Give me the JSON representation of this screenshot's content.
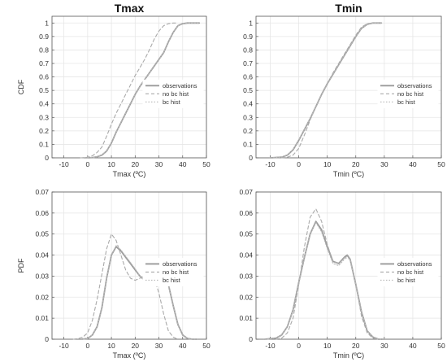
{
  "chart_data": [
    {
      "type": "line",
      "title": "Tmax",
      "xlabel": "Tmax (ºC)",
      "ylabel": "CDF",
      "xlim": [
        -15,
        50
      ],
      "ylim": [
        0,
        1.05
      ],
      "xticks": [
        "-10",
        "0",
        "10",
        "20",
        "30",
        "40",
        "50"
      ],
      "yticks": [
        "0",
        "0.1",
        "0.2",
        "0.3",
        "0.4",
        "0.5",
        "0.6",
        "0.7",
        "0.8",
        "0.9",
        "1"
      ],
      "grid": true,
      "legend_position": "right",
      "series": [
        {
          "name": "observations",
          "style": "solid",
          "color": "#9a9a9a",
          "x": [
            0,
            2,
            4,
            6,
            8,
            10,
            12,
            14,
            16,
            18,
            20,
            22,
            24,
            26,
            28,
            30,
            32,
            34,
            36,
            38,
            40,
            42,
            44,
            47
          ],
          "y": [
            0,
            0.002,
            0.008,
            0.02,
            0.05,
            0.11,
            0.19,
            0.26,
            0.33,
            0.4,
            0.47,
            0.53,
            0.58,
            0.63,
            0.68,
            0.73,
            0.78,
            0.86,
            0.93,
            0.98,
            0.995,
            1.0,
            1.0,
            1.0
          ]
        },
        {
          "name": "no bc hist",
          "style": "dashed",
          "color": "#aaaaaa",
          "x": [
            -3,
            0,
            2,
            4,
            6,
            8,
            10,
            12,
            14,
            16,
            18,
            20,
            22,
            24,
            26,
            28,
            30,
            32,
            34,
            36,
            38
          ],
          "y": [
            0,
            0.004,
            0.015,
            0.04,
            0.08,
            0.16,
            0.25,
            0.33,
            0.4,
            0.47,
            0.54,
            0.61,
            0.67,
            0.73,
            0.8,
            0.88,
            0.94,
            0.98,
            0.995,
            1.0,
            1.0
          ]
        },
        {
          "name": "bc hist",
          "style": "dotted",
          "color": "#b8b8b8",
          "x": [
            0,
            2,
            4,
            6,
            8,
            10,
            12,
            14,
            16,
            18,
            20,
            22,
            24,
            26,
            28,
            30,
            32,
            34,
            36,
            38,
            40,
            42,
            44,
            47
          ],
          "y": [
            0,
            0.002,
            0.008,
            0.021,
            0.052,
            0.112,
            0.19,
            0.26,
            0.33,
            0.4,
            0.47,
            0.53,
            0.58,
            0.63,
            0.68,
            0.73,
            0.78,
            0.86,
            0.93,
            0.98,
            0.995,
            1.0,
            1.0,
            1.0
          ]
        }
      ]
    },
    {
      "type": "line",
      "title": "Tmin",
      "xlabel": "Tmin (ºC)",
      "ylabel": "",
      "xlim": [
        -15,
        50
      ],
      "ylim": [
        0,
        1.05
      ],
      "xticks": [
        "-10",
        "0",
        "10",
        "20",
        "30",
        "40",
        "50"
      ],
      "yticks": [
        "0",
        "0.1",
        "0.2",
        "0.3",
        "0.4",
        "0.5",
        "0.6",
        "0.7",
        "0.8",
        "0.9",
        "1"
      ],
      "grid": true,
      "legend_position": "right",
      "series": [
        {
          "name": "observations",
          "style": "solid",
          "color": "#9a9a9a",
          "x": [
            -10,
            -6,
            -4,
            -2,
            0,
            2,
            4,
            6,
            8,
            10,
            12,
            14,
            16,
            18,
            20,
            22,
            24,
            26,
            28,
            29
          ],
          "y": [
            0,
            0.005,
            0.02,
            0.06,
            0.13,
            0.21,
            0.29,
            0.38,
            0.47,
            0.55,
            0.62,
            0.69,
            0.76,
            0.83,
            0.9,
            0.96,
            0.99,
            1.0,
            1.0,
            1.0
          ]
        },
        {
          "name": "no bc hist",
          "style": "dashed",
          "color": "#aaaaaa",
          "x": [
            -6,
            -4,
            -2,
            0,
            2,
            4,
            6,
            8,
            10,
            12,
            14,
            16,
            18,
            20,
            22,
            24,
            26,
            28
          ],
          "y": [
            0,
            0.005,
            0.02,
            0.07,
            0.17,
            0.28,
            0.38,
            0.47,
            0.55,
            0.63,
            0.7,
            0.77,
            0.84,
            0.91,
            0.97,
            0.995,
            1.0,
            1.0
          ]
        },
        {
          "name": "bc hist",
          "style": "dotted",
          "color": "#b8b8b8",
          "x": [
            -10,
            -6,
            -4,
            -2,
            0,
            2,
            4,
            6,
            8,
            10,
            12,
            14,
            16,
            18,
            20,
            22,
            24,
            26,
            28,
            29
          ],
          "y": [
            0,
            0.006,
            0.021,
            0.062,
            0.133,
            0.213,
            0.292,
            0.38,
            0.47,
            0.55,
            0.62,
            0.69,
            0.76,
            0.83,
            0.9,
            0.96,
            0.99,
            1.0,
            1.0,
            1.0
          ]
        }
      ]
    },
    {
      "type": "line",
      "title": "",
      "xlabel": "Tmax (ºC)",
      "ylabel": "PDF",
      "xlim": [
        -15,
        50
      ],
      "ylim": [
        0,
        0.07
      ],
      "xticks": [
        "-10",
        "0",
        "10",
        "20",
        "30",
        "40",
        "50"
      ],
      "yticks": [
        "0",
        "0.01",
        "0.02",
        "0.03",
        "0.04",
        "0.05",
        "0.06",
        "0.07"
      ],
      "grid": true,
      "legend_position": "right",
      "series": [
        {
          "name": "observations",
          "style": "solid",
          "color": "#9a9a9a",
          "x": [
            -3,
            0,
            2,
            4,
            6,
            8,
            10,
            12,
            14,
            16,
            18,
            20,
            22,
            24,
            26,
            28,
            30,
            32,
            34,
            36,
            38,
            40,
            42,
            44,
            46
          ],
          "y": [
            0,
            0.0003,
            0.002,
            0.006,
            0.015,
            0.029,
            0.04,
            0.044,
            0.042,
            0.039,
            0.036,
            0.033,
            0.03,
            0.028,
            0.027,
            0.027,
            0.028,
            0.029,
            0.026,
            0.016,
            0.007,
            0.002,
            0.0004,
            0,
            0
          ]
        },
        {
          "name": "no bc hist",
          "style": "dashed",
          "color": "#aaaaaa",
          "x": [
            -6,
            -4,
            -2,
            0,
            2,
            4,
            6,
            8,
            10,
            12,
            14,
            16,
            18,
            20,
            22,
            24,
            26,
            28,
            30,
            32,
            34,
            36,
            38
          ],
          "y": [
            0,
            0.0003,
            0.001,
            0.003,
            0.009,
            0.019,
            0.031,
            0.043,
            0.05,
            0.047,
            0.04,
            0.033,
            0.029,
            0.028,
            0.029,
            0.03,
            0.031,
            0.029,
            0.022,
            0.012,
            0.004,
            0.001,
            0
          ]
        },
        {
          "name": "bc hist",
          "style": "dotted",
          "color": "#b8b8b8",
          "x": [
            -3,
            0,
            2,
            4,
            6,
            8,
            10,
            12,
            14,
            16,
            18,
            20,
            22,
            24,
            26,
            28,
            30,
            32,
            34,
            36,
            38,
            40,
            42,
            44,
            46
          ],
          "y": [
            0,
            0.0003,
            0.002,
            0.006,
            0.015,
            0.029,
            0.04,
            0.0445,
            0.0425,
            0.0395,
            0.0365,
            0.0335,
            0.03,
            0.028,
            0.027,
            0.027,
            0.028,
            0.029,
            0.026,
            0.016,
            0.007,
            0.002,
            0.0004,
            0,
            0
          ]
        }
      ]
    },
    {
      "type": "line",
      "title": "",
      "xlabel": "Tmin (ºC)",
      "ylabel": "",
      "xlim": [
        -15,
        50
      ],
      "ylim": [
        0,
        0.07
      ],
      "xticks": [
        "-10",
        "0",
        "10",
        "20",
        "30",
        "40",
        "50"
      ],
      "yticks": [
        "0",
        "0.01",
        "0.02",
        "0.03",
        "0.04",
        "0.05",
        "0.06",
        "0.07"
      ],
      "grid": true,
      "legend_position": "right",
      "series": [
        {
          "name": "observations",
          "style": "solid",
          "color": "#9a9a9a",
          "x": [
            -12,
            -8,
            -6,
            -4,
            -2,
            0,
            2,
            4,
            6,
            8,
            10,
            12,
            14,
            16,
            17,
            18,
            20,
            22,
            24,
            26,
            28,
            30
          ],
          "y": [
            0,
            0.0005,
            0.002,
            0.006,
            0.014,
            0.027,
            0.039,
            0.05,
            0.056,
            0.052,
            0.044,
            0.037,
            0.036,
            0.039,
            0.04,
            0.038,
            0.026,
            0.013,
            0.004,
            0.001,
            0,
            0
          ]
        },
        {
          "name": "no bc hist",
          "style": "dashed",
          "color": "#aaaaaa",
          "x": [
            -8,
            -6,
            -4,
            -2,
            0,
            2,
            4,
            6,
            8,
            10,
            12,
            14,
            16,
            18,
            20,
            22,
            24,
            26,
            28
          ],
          "y": [
            0,
            0.0005,
            0.003,
            0.01,
            0.026,
            0.044,
            0.058,
            0.062,
            0.056,
            0.045,
            0.037,
            0.036,
            0.039,
            0.038,
            0.026,
            0.011,
            0.003,
            0.0005,
            0
          ]
        },
        {
          "name": "bc hist",
          "style": "dotted",
          "color": "#b8b8b8",
          "x": [
            -12,
            -8,
            -6,
            -4,
            -2,
            0,
            2,
            4,
            6,
            8,
            10,
            12,
            14,
            16,
            17,
            18,
            20,
            22,
            24,
            26,
            28,
            30
          ],
          "y": [
            0,
            0.0005,
            0.002,
            0.006,
            0.014,
            0.027,
            0.039,
            0.05,
            0.0555,
            0.051,
            0.043,
            0.036,
            0.035,
            0.038,
            0.0395,
            0.0375,
            0.026,
            0.013,
            0.004,
            0.001,
            0,
            0
          ]
        }
      ]
    }
  ]
}
